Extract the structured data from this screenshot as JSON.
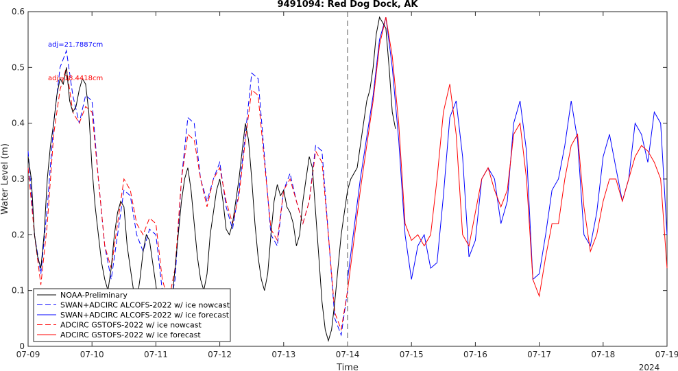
{
  "chart_data": {
    "type": "line",
    "title": "9491094: Red Dog Dock, AK",
    "xlabel": "Time",
    "ylabel": "Water Level (m)",
    "year_label": "2024",
    "xlim": [
      "07-09",
      "07-19"
    ],
    "ylim": [
      0,
      0.6
    ],
    "x_ticks": [
      "07-09",
      "07-10",
      "07-11",
      "07-12",
      "07-13",
      "07-14",
      "07-15",
      "07-16",
      "07-17",
      "07-18",
      "07-19"
    ],
    "y_ticks": [
      "0",
      "0.1",
      "0.2",
      "0.3",
      "0.4",
      "0.5",
      "0.6"
    ],
    "nowcast_end": "07-14",
    "annotations": [
      {
        "text": "adj=21.7887cm",
        "color": "#0000ff"
      },
      {
        "text": "adj=18.4418cm",
        "color": "#ff0000"
      }
    ],
    "legend_position": "bottom-left",
    "series": [
      {
        "name": "NOAA-Preliminary",
        "color": "#000000",
        "dash": false,
        "x": [
          9.0,
          9.05,
          9.1,
          9.15,
          9.2,
          9.25,
          9.3,
          9.35,
          9.4,
          9.45,
          9.5,
          9.55,
          9.6,
          9.65,
          9.7,
          9.75,
          9.8,
          9.85,
          9.9,
          9.95,
          10.0,
          10.05,
          10.1,
          10.15,
          10.2,
          10.25,
          10.3,
          10.35,
          10.4,
          10.45,
          10.5,
          10.55,
          10.6,
          10.65,
          10.7,
          10.75,
          10.8,
          10.85,
          10.9,
          10.95,
          11.0,
          11.05,
          11.1,
          11.15,
          11.2,
          11.25,
          11.3,
          11.35,
          11.4,
          11.45,
          11.5,
          11.55,
          11.6,
          11.65,
          11.7,
          11.75,
          11.8,
          11.85,
          11.9,
          11.95,
          12.0,
          12.05,
          12.1,
          12.15,
          12.2,
          12.25,
          12.3,
          12.35,
          12.4,
          12.45,
          12.5,
          12.55,
          12.6,
          12.65,
          12.7,
          12.75,
          12.8,
          12.85,
          12.9,
          12.95,
          13.0,
          13.05,
          13.1,
          13.15,
          13.2,
          13.25,
          13.3,
          13.35,
          13.4,
          13.45,
          13.5,
          13.55,
          13.6,
          13.65,
          13.7,
          13.75,
          13.8,
          13.85,
          13.9,
          13.95,
          14.0,
          14.05,
          14.1,
          14.15,
          14.2,
          14.25,
          14.3,
          14.35,
          14.4,
          14.45,
          14.5,
          14.55,
          14.6,
          14.65,
          14.7,
          14.75
        ],
        "y": [
          0.34,
          0.3,
          0.2,
          0.16,
          0.14,
          0.2,
          0.3,
          0.36,
          0.4,
          0.45,
          0.48,
          0.47,
          0.5,
          0.44,
          0.42,
          0.43,
          0.46,
          0.48,
          0.47,
          0.42,
          0.32,
          0.25,
          0.2,
          0.15,
          0.12,
          0.1,
          0.14,
          0.2,
          0.24,
          0.26,
          0.25,
          0.18,
          0.14,
          0.1,
          0.08,
          0.12,
          0.17,
          0.2,
          0.19,
          0.15,
          0.11,
          0.06,
          0.04,
          0.02,
          0.04,
          0.08,
          0.14,
          0.2,
          0.26,
          0.3,
          0.32,
          0.28,
          0.22,
          0.16,
          0.12,
          0.1,
          0.13,
          0.2,
          0.24,
          0.28,
          0.3,
          0.26,
          0.21,
          0.2,
          0.22,
          0.26,
          0.3,
          0.35,
          0.4,
          0.37,
          0.3,
          0.22,
          0.16,
          0.12,
          0.1,
          0.13,
          0.2,
          0.26,
          0.29,
          0.27,
          0.28,
          0.25,
          0.24,
          0.22,
          0.18,
          0.2,
          0.26,
          0.3,
          0.34,
          0.32,
          0.24,
          0.16,
          0.08,
          0.03,
          0.01,
          0.03,
          0.08,
          0.14,
          0.2,
          0.24,
          0.28,
          0.3,
          0.31,
          0.32,
          0.36,
          0.4,
          0.44,
          0.46,
          0.5,
          0.56,
          0.59,
          0.58,
          0.57,
          0.5,
          0.42,
          0.39
        ]
      },
      {
        "name": "SWAN+ADCIRC ALCOFS-2022 w/ ice nowcast",
        "color": "#0000ff",
        "dash": true,
        "x": [
          9.0,
          9.1,
          9.2,
          9.3,
          9.4,
          9.5,
          9.6,
          9.7,
          9.8,
          9.9,
          10.0,
          10.1,
          10.2,
          10.3,
          10.4,
          10.5,
          10.6,
          10.7,
          10.8,
          10.9,
          11.0,
          11.1,
          11.2,
          11.3,
          11.4,
          11.5,
          11.6,
          11.7,
          11.8,
          11.9,
          12.0,
          12.1,
          12.2,
          12.3,
          12.4,
          12.5,
          12.6,
          12.7,
          12.8,
          12.9,
          13.0,
          13.1,
          13.2,
          13.3,
          13.4,
          13.5,
          13.6,
          13.7,
          13.8,
          13.9,
          14.0
        ],
        "y": [
          0.35,
          0.2,
          0.13,
          0.25,
          0.4,
          0.5,
          0.53,
          0.45,
          0.4,
          0.45,
          0.44,
          0.3,
          0.18,
          0.12,
          0.2,
          0.28,
          0.27,
          0.2,
          0.17,
          0.21,
          0.2,
          0.1,
          0.06,
          0.12,
          0.3,
          0.41,
          0.4,
          0.3,
          0.26,
          0.3,
          0.33,
          0.25,
          0.21,
          0.28,
          0.38,
          0.49,
          0.48,
          0.34,
          0.2,
          0.18,
          0.28,
          0.31,
          0.26,
          0.22,
          0.26,
          0.36,
          0.35,
          0.2,
          0.05,
          0.02,
          0.1
        ]
      },
      {
        "name": "SWAN+ADCIRC ALCOFS-2022 w/ ice forecast",
        "color": "#0000ff",
        "dash": false,
        "x": [
          14.0,
          14.2,
          14.4,
          14.5,
          14.6,
          14.7,
          14.8,
          14.9,
          15.0,
          15.05,
          15.1,
          15.2,
          15.3,
          15.4,
          15.5,
          15.6,
          15.7,
          15.8,
          15.9,
          16.0,
          16.1,
          16.2,
          16.3,
          16.4,
          16.5,
          16.6,
          16.7,
          16.8,
          16.9,
          17.0,
          17.1,
          17.2,
          17.3,
          17.4,
          17.5,
          17.6,
          17.7,
          17.8,
          17.9,
          18.0,
          18.1,
          18.2,
          18.3,
          18.4,
          18.5,
          18.6,
          18.7,
          18.8,
          18.9,
          19.0
        ],
        "y": [
          0.12,
          0.3,
          0.45,
          0.55,
          0.59,
          0.5,
          0.37,
          0.2,
          0.12,
          0.15,
          0.18,
          0.2,
          0.14,
          0.15,
          0.27,
          0.41,
          0.44,
          0.34,
          0.16,
          0.19,
          0.3,
          0.32,
          0.3,
          0.22,
          0.26,
          0.4,
          0.44,
          0.35,
          0.12,
          0.13,
          0.2,
          0.28,
          0.3,
          0.36,
          0.44,
          0.37,
          0.2,
          0.18,
          0.24,
          0.34,
          0.38,
          0.32,
          0.26,
          0.3,
          0.4,
          0.38,
          0.33,
          0.42,
          0.4,
          0.2
        ]
      },
      {
        "name": "ADCIRC GSTOFS-2022 w/ ice nowcast",
        "color": "#ff0000",
        "dash": true,
        "x": [
          9.0,
          9.1,
          9.2,
          9.3,
          9.4,
          9.5,
          9.6,
          9.7,
          9.8,
          9.9,
          10.0,
          10.1,
          10.2,
          10.3,
          10.4,
          10.5,
          10.6,
          10.7,
          10.8,
          10.9,
          11.0,
          11.1,
          11.2,
          11.3,
          11.4,
          11.5,
          11.6,
          11.7,
          11.8,
          11.9,
          12.0,
          12.1,
          12.2,
          12.3,
          12.4,
          12.5,
          12.6,
          12.7,
          12.8,
          12.9,
          13.0,
          13.1,
          13.2,
          13.3,
          13.4,
          13.5,
          13.6,
          13.7,
          13.8,
          13.9,
          14.0
        ],
        "y": [
          0.32,
          0.2,
          0.11,
          0.22,
          0.38,
          0.46,
          0.5,
          0.42,
          0.4,
          0.43,
          0.42,
          0.3,
          0.18,
          0.14,
          0.22,
          0.3,
          0.28,
          0.22,
          0.2,
          0.23,
          0.22,
          0.12,
          0.08,
          0.14,
          0.3,
          0.38,
          0.37,
          0.3,
          0.25,
          0.3,
          0.32,
          0.26,
          0.22,
          0.27,
          0.37,
          0.46,
          0.45,
          0.33,
          0.21,
          0.19,
          0.28,
          0.3,
          0.26,
          0.22,
          0.26,
          0.35,
          0.33,
          0.2,
          0.06,
          0.03,
          0.1
        ]
      },
      {
        "name": "ADCIRC GSTOFS-2022 w/ ice forecast",
        "color": "#ff0000",
        "dash": false,
        "x": [
          14.0,
          14.2,
          14.4,
          14.5,
          14.6,
          14.7,
          14.8,
          14.9,
          15.0,
          15.1,
          15.2,
          15.3,
          15.4,
          15.5,
          15.6,
          15.7,
          15.8,
          15.9,
          16.0,
          16.1,
          16.2,
          16.3,
          16.4,
          16.5,
          16.6,
          16.7,
          16.8,
          16.9,
          17.0,
          17.1,
          17.2,
          17.3,
          17.4,
          17.5,
          17.6,
          17.7,
          17.8,
          17.9,
          18.0,
          18.1,
          18.2,
          18.3,
          18.4,
          18.5,
          18.6,
          18.7,
          18.8,
          18.9,
          19.0
        ],
        "y": [
          0.1,
          0.28,
          0.44,
          0.54,
          0.59,
          0.52,
          0.4,
          0.22,
          0.19,
          0.2,
          0.18,
          0.2,
          0.3,
          0.42,
          0.47,
          0.38,
          0.2,
          0.18,
          0.24,
          0.3,
          0.32,
          0.28,
          0.25,
          0.28,
          0.38,
          0.4,
          0.3,
          0.12,
          0.09,
          0.16,
          0.22,
          0.22,
          0.3,
          0.36,
          0.38,
          0.25,
          0.17,
          0.2,
          0.26,
          0.3,
          0.3,
          0.26,
          0.3,
          0.34,
          0.36,
          0.35,
          0.33,
          0.3,
          0.14
        ]
      }
    ]
  }
}
